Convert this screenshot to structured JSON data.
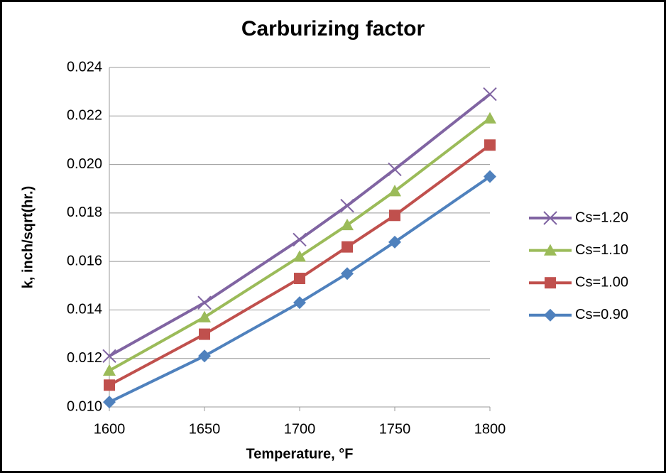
{
  "chart_data": {
    "type": "line",
    "title": "Carburizing factor",
    "x_label": "Temperature, °F",
    "y_label": "k, inch/sqrt(hr.)",
    "x": [
      1600,
      1650,
      1700,
      1725,
      1750,
      1800
    ],
    "series": [
      {
        "name": "Cs=1.20",
        "color": "#8064a2",
        "marker": "x",
        "values": [
          0.0121,
          0.0143,
          0.0169,
          0.0183,
          0.0198,
          0.0229
        ]
      },
      {
        "name": "Cs=1.10",
        "color": "#9bbb59",
        "marker": "triangle",
        "values": [
          0.0115,
          0.0137,
          0.0162,
          0.0175,
          0.0189,
          0.0219
        ]
      },
      {
        "name": "Cs=1.00",
        "color": "#c0504d",
        "marker": "square",
        "values": [
          0.0109,
          0.013,
          0.0153,
          0.0166,
          0.0179,
          0.0208
        ]
      },
      {
        "name": "Cs=0.90",
        "color": "#4f81bd",
        "marker": "diamond",
        "values": [
          0.0102,
          0.0121,
          0.0143,
          0.0155,
          0.0168,
          0.0195
        ]
      }
    ],
    "xlim": [
      1600,
      1800
    ],
    "xticks": [
      1600,
      1650,
      1700,
      1750,
      1800
    ],
    "ylim": [
      0.01,
      0.024
    ],
    "yticks": [
      {
        "value": 0.01,
        "label": "0.010"
      },
      {
        "value": 0.012,
        "label": "0.012"
      },
      {
        "value": 0.014,
        "label": "0.014"
      },
      {
        "value": 0.016,
        "label": "0.016"
      },
      {
        "value": 0.018,
        "label": "0.018"
      },
      {
        "value": 0.02,
        "label": "0.020"
      },
      {
        "value": 0.022,
        "label": "0.022"
      },
      {
        "value": 0.024,
        "label": "0.024"
      }
    ],
    "grid": true,
    "legend": "right"
  }
}
